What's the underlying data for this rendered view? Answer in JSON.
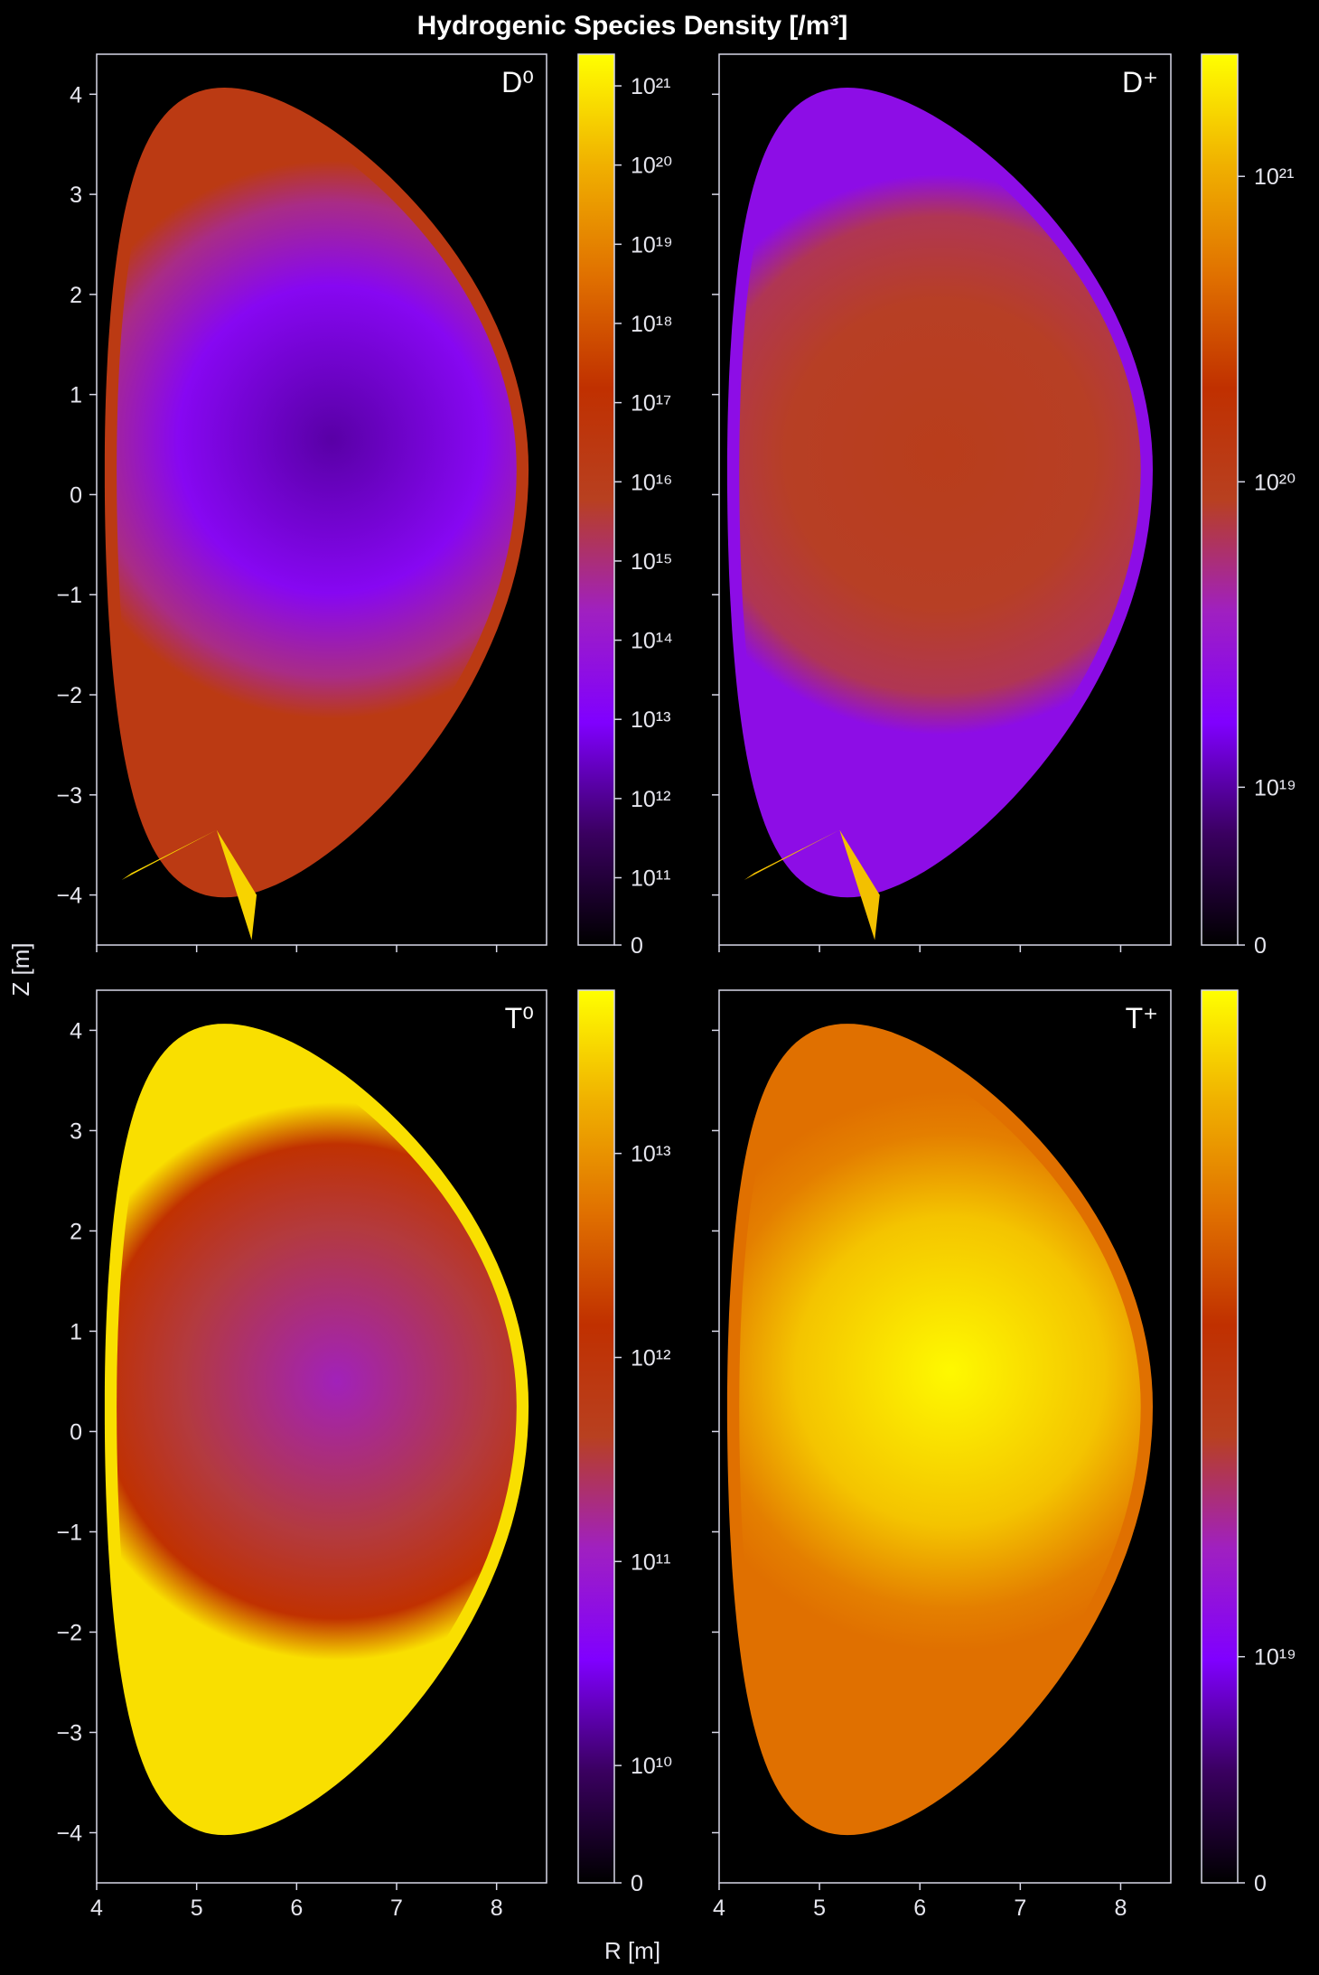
{
  "title": "Hydrogenic Species Density [/m³]",
  "colors": {
    "background": "#000000",
    "frame": "#d8d8e8",
    "colormap": [
      "#000000",
      "#3a0060",
      "#8000ff",
      "#a020c0",
      "#b84020",
      "#c03000",
      "#e07000",
      "#f0b000",
      "#ffff00"
    ]
  },
  "chart_data": [
    {
      "type": "heatmap",
      "species": "D⁰",
      "panel_label": "D⁰",
      "xlabel": "R [m]",
      "ylabel": "Z [m]",
      "xlim": [
        4,
        8.5
      ],
      "ylim": [
        -4.5,
        4.4
      ],
      "xticks": [
        4,
        5,
        6,
        7,
        8
      ],
      "yticks": [
        -4,
        -3,
        -2,
        -1,
        0,
        1,
        2,
        3,
        4
      ],
      "show_xticklabels": false,
      "show_yticklabels": true,
      "show_ylabel": true,
      "colorbar": {
        "scale": "symlog",
        "ticks": [
          "0",
          "10¹¹",
          "10¹²",
          "10¹³",
          "10¹⁴",
          "10¹⁵",
          "10¹⁶",
          "10¹⁷",
          "10¹⁸",
          "10¹⁹",
          "10²⁰",
          "10²¹"
        ],
        "max_exponent": 21.4
      },
      "core_level": 0.18,
      "edge_level": 0.42,
      "scrape_off_level": 0.55,
      "divertor_level": 0.93,
      "core_center": [
        6.35,
        0.55
      ]
    },
    {
      "type": "heatmap",
      "species": "D⁺",
      "panel_label": "D⁺",
      "xlabel": "R [m]",
      "ylabel": "Z [m]",
      "xlim": [
        4,
        8.5
      ],
      "ylim": [
        -4.5,
        4.4
      ],
      "xticks": [
        4,
        5,
        6,
        7,
        8
      ],
      "yticks": [
        -4,
        -3,
        -2,
        -1,
        0,
        1,
        2,
        3,
        4
      ],
      "show_xticklabels": false,
      "show_yticklabels": false,
      "show_ylabel": false,
      "colorbar": {
        "scale": "symlog",
        "ticks": [
          "0",
          "10¹⁹",
          "10²⁰",
          "10²¹"
        ],
        "max_exponent": 21.4
      },
      "core_level": 0.52,
      "edge_level": 0.46,
      "scrape_off_level": 0.3,
      "divertor_level": 0.9,
      "core_center": [
        6.2,
        0.4
      ]
    },
    {
      "type": "heatmap",
      "species": "T⁰",
      "panel_label": "T⁰",
      "xlabel": "R [m]",
      "ylabel": "Z [m]",
      "xlim": [
        4,
        8.5
      ],
      "ylim": [
        -4.5,
        4.4
      ],
      "xticks": [
        4,
        5,
        6,
        7,
        8
      ],
      "yticks": [
        -4,
        -3,
        -2,
        -1,
        0,
        1,
        2,
        3,
        4
      ],
      "show_xticklabels": true,
      "show_yticklabels": true,
      "show_ylabel": false,
      "colorbar": {
        "scale": "symlog",
        "ticks": [
          "0",
          "10¹⁰",
          "10¹¹",
          "10¹²",
          "10¹³"
        ],
        "max_exponent": 13.8
      },
      "core_level": 0.38,
      "edge_level": 0.62,
      "scrape_off_level": 0.95,
      "divertor_level": 0.95,
      "core_center": [
        6.4,
        0.5
      ]
    },
    {
      "type": "heatmap",
      "species": "T⁺",
      "panel_label": "T⁺",
      "xlabel": "R [m]",
      "ylabel": "Z [m]",
      "xlim": [
        4,
        8.5
      ],
      "ylim": [
        -4.5,
        4.4
      ],
      "xticks": [
        4,
        5,
        6,
        7,
        8
      ],
      "yticks": [
        -4,
        -3,
        -2,
        -1,
        0,
        1,
        2,
        3,
        4
      ],
      "show_xticklabels": true,
      "show_yticklabels": false,
      "show_ylabel": false,
      "colorbar": {
        "scale": "symlog",
        "ticks": [
          "0",
          "10¹⁹"
        ],
        "max_exponent": 20.4
      },
      "core_level": 0.99,
      "edge_level": 0.78,
      "scrape_off_level": 0.75,
      "divertor_level": 0.75,
      "core_center": [
        6.3,
        0.6
      ]
    }
  ],
  "shared_axis_labels": {
    "x": "R [m]",
    "y": "Z [m]"
  }
}
